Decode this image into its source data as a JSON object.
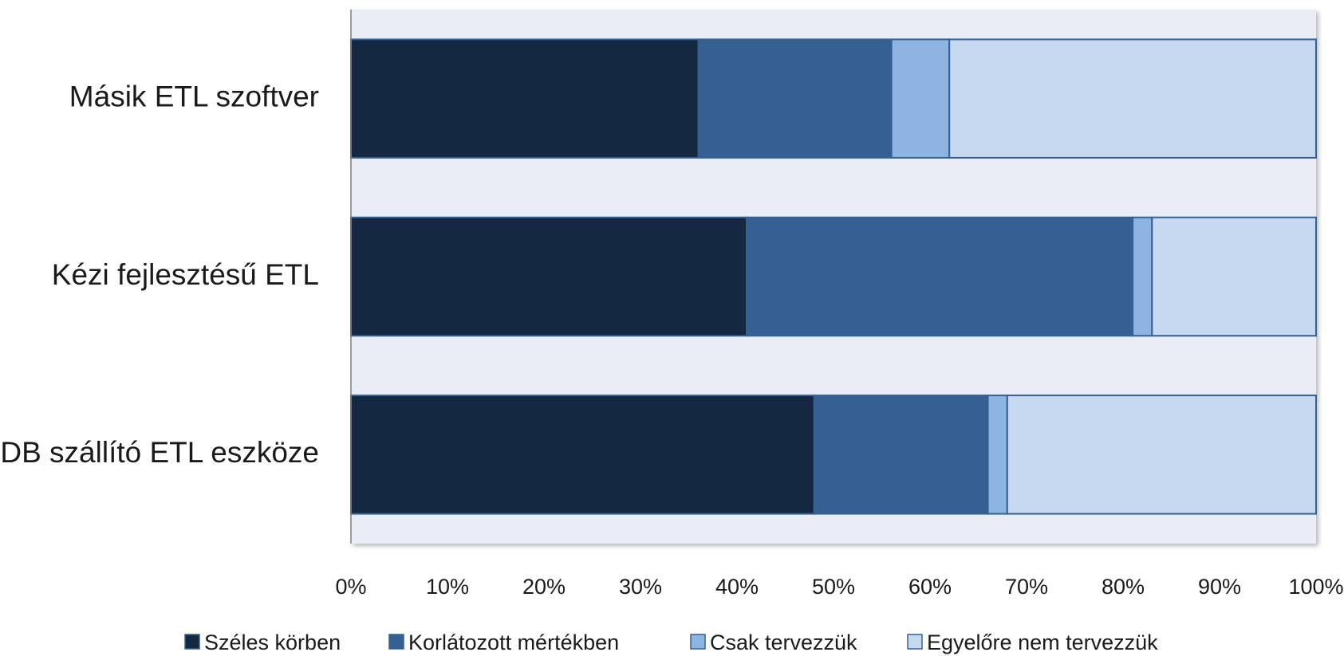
{
  "chart_data": {
    "type": "bar",
    "orientation": "horizontal",
    "stacked": "percent",
    "categories": [
      "Másik ETL szoftver",
      "Kézi fejlesztésű ETL",
      "DB szállító ETL eszköze"
    ],
    "series": [
      {
        "name": "Széles körben",
        "color": "#142842",
        "values": [
          36,
          41,
          48
        ]
      },
      {
        "name": "Korlátozott mértékben",
        "color": "#376092",
        "values": [
          20,
          40,
          18
        ]
      },
      {
        "name": "Csak tervezzük",
        "color": "#8eb4e3",
        "values": [
          6,
          2,
          2
        ]
      },
      {
        "name": "Egyelőre nem tervezzük",
        "color": "#c6d9f1",
        "values": [
          38,
          17,
          32
        ]
      }
    ],
    "xlim": [
      0,
      100
    ],
    "xticks": [
      "0%",
      "10%",
      "20%",
      "30%",
      "40%",
      "50%",
      "60%",
      "70%",
      "80%",
      "90%",
      "100%"
    ],
    "xlabel": "",
    "ylabel": "",
    "title": "",
    "legend_position": "bottom",
    "plot_background": "#e9eef6",
    "bar_border": "#376092"
  }
}
